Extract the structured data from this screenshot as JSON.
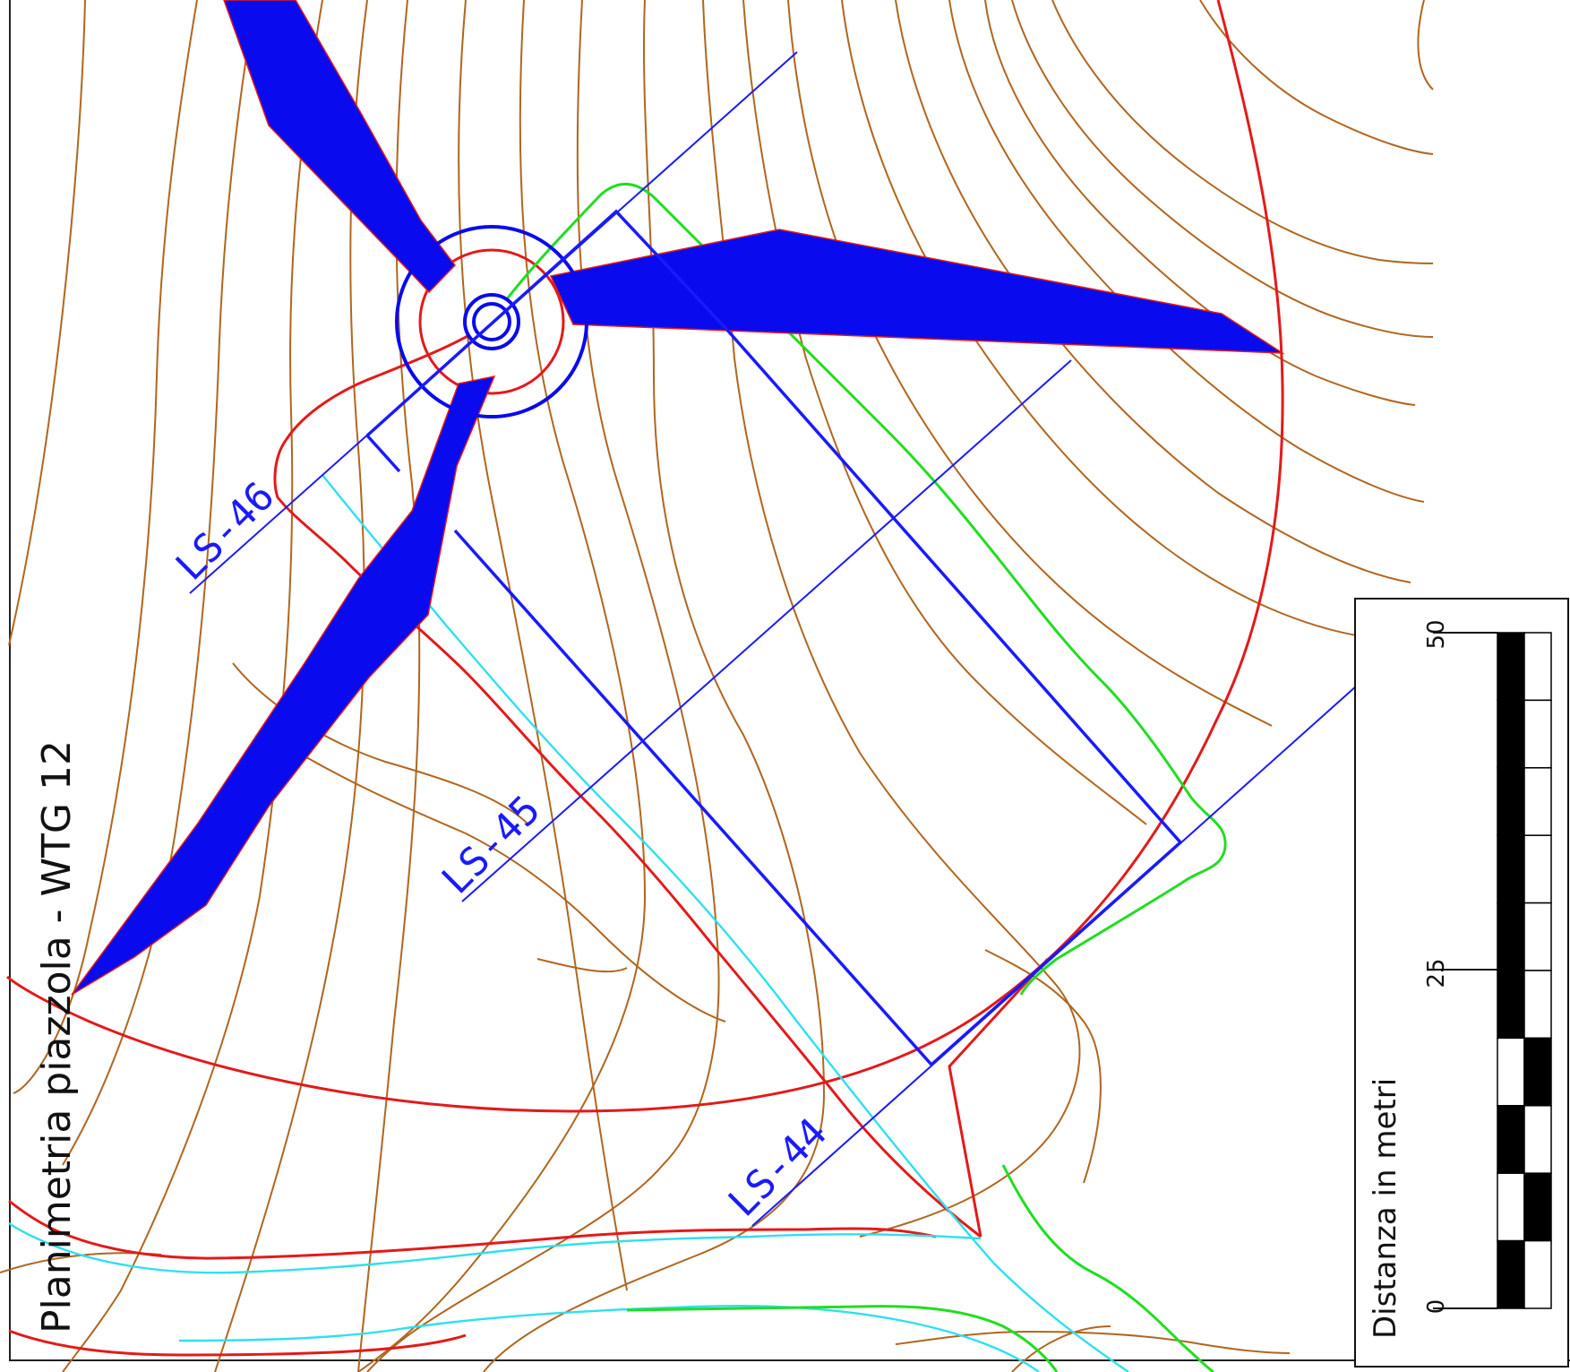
{
  "title": "Planimetria piazzola - WTG 12",
  "sections": [
    {
      "id": "ls-46",
      "label": "LS-46"
    },
    {
      "id": "ls-45",
      "label": "LS-45"
    },
    {
      "id": "ls-44",
      "label": "LS-44"
    }
  ],
  "scale_bar": {
    "caption": "Distanza in metri",
    "ticks": [
      "0",
      "25",
      "50"
    ],
    "max_value": 50,
    "segments": 10
  },
  "colors": {
    "contour": "#b0661f",
    "platform_outline": "#e31a1a",
    "section_line": "#1a1aff",
    "wind_turbine": "#0a0aee",
    "road_edge_cyan": "#2ee0ee",
    "road_edge_green": "#22dd22",
    "frame": "#222222"
  }
}
